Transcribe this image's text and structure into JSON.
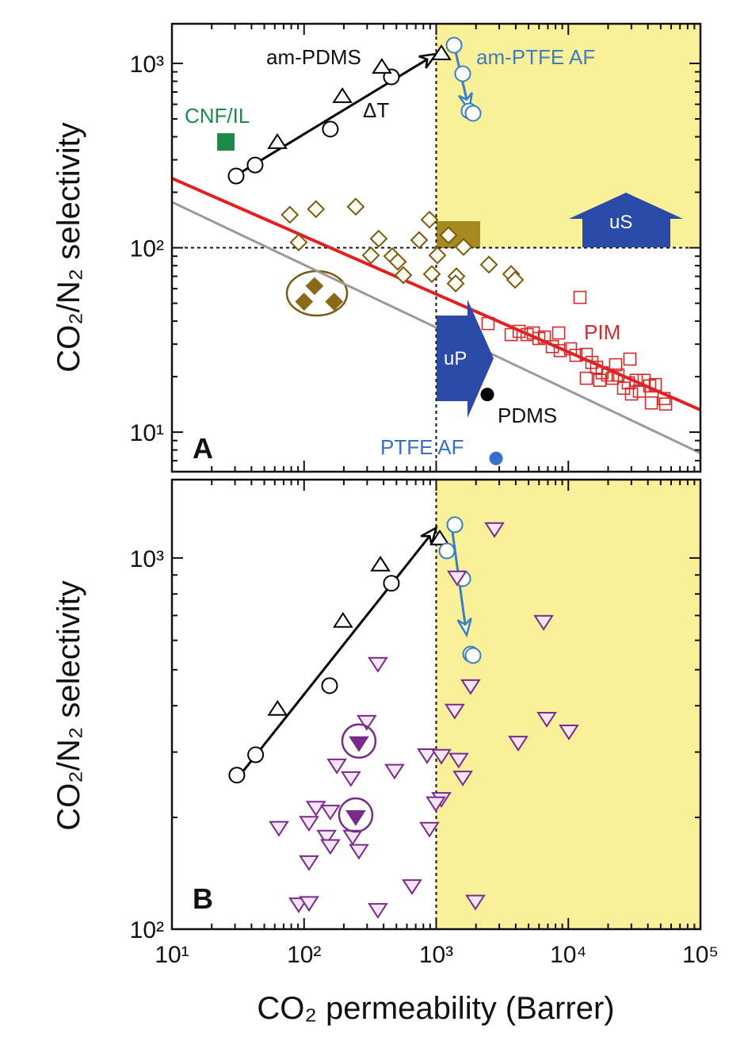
{
  "chart_data": [
    {
      "type": "scatter",
      "panel_label": "A",
      "xscale": "log",
      "yscale": "log",
      "xlim": [
        10,
        100000
      ],
      "ylim": [
        6.1,
        1640
      ],
      "xlabel": "CO₂ permeability (Barrer)",
      "ylabel": "CO₂/N₂ selectivity",
      "y_tick_labels": [
        "10³",
        "10²",
        "10¹"
      ],
      "y_tick_values": [
        1000,
        100,
        10
      ],
      "highlight_region": {
        "x_min": 1000,
        "y_min": 100,
        "color": "#fbf09a"
      },
      "reference_lines": {
        "x": 1000,
        "y": 100
      },
      "upper_bounds": [
        {
          "name": "red bound",
          "color": "#e32020",
          "points": [
            [
              10,
              238
            ],
            [
              100000,
              13.2
            ]
          ]
        },
        {
          "name": "gray bound",
          "color": "#9a9a9a",
          "points": [
            [
              10,
              177
            ],
            [
              100000,
              7.7
            ]
          ]
        }
      ],
      "series": [
        {
          "name": "am-PDMS circles",
          "marker": "circle",
          "color": "#000000",
          "x": [
            30.6,
            42.6,
            158,
            458
          ],
          "y": [
            245,
            281,
            440,
            845
          ]
        },
        {
          "name": "am-PDMS triangles",
          "marker": "triangle-up",
          "color": "#000000",
          "x": [
            62.8,
            195,
            388,
            1094
          ],
          "y": [
            372,
            660,
            952,
            1127
          ]
        },
        {
          "name": "am-PTFE AF",
          "marker": "circle",
          "color": "#3a7fc0",
          "x": [
            1365,
            1588,
            1774,
            1900
          ],
          "y": [
            1256,
            879,
            552,
            536
          ]
        },
        {
          "name": "CNF/IL",
          "marker": "square-filled",
          "color": "#1e8a4a",
          "x": [
            25.6
          ],
          "y": [
            375
          ]
        },
        {
          "name": "open diamonds",
          "marker": "diamond",
          "color": "#7a5a10",
          "x": [
            78,
            123,
            246,
            889,
            91,
            367,
            743,
            1239,
            1610,
            320,
            465,
            512,
            1021,
            564,
            927,
            1422,
            1403,
            2506,
            3690,
            3955
          ],
          "y": [
            151,
            162,
            167,
            142,
            107,
            112,
            110,
            117,
            101,
            91,
            90,
            84,
            91,
            71,
            72,
            70,
            64,
            81,
            72,
            67
          ]
        },
        {
          "name": "filled diamonds",
          "marker": "diamond-filled",
          "color": "#8a6a18",
          "x": [
            120,
            100,
            169
          ],
          "y": [
            62,
            51,
            51
          ]
        },
        {
          "name": "PIM",
          "marker": "square",
          "color": "#d42a2a",
          "x": [
            12250,
            2470,
            3690,
            4240,
            4870,
            5430,
            5980,
            6590,
            8450,
            7570,
            8690,
            10380,
            11430,
            13680,
            15070,
            16370,
            18030,
            19860,
            21580,
            23770,
            29240,
            22800,
            28440,
            32660,
            37500,
            41300,
            45500,
            30060,
            34500,
            42500,
            53000,
            54500,
            13680,
            17300,
            26200
          ],
          "y": [
            53.8,
            38.8,
            33.8,
            35.2,
            33.8,
            34.5,
            32.2,
            32.8,
            34.5,
            29.1,
            27.7,
            28.3,
            26.1,
            26.4,
            23.9,
            22.5,
            21.0,
            20.4,
            19.6,
            20.4,
            24.9,
            23.2,
            18.5,
            19.1,
            19.1,
            17.8,
            18.1,
            16.1,
            16.7,
            14.4,
            15.2,
            14.2,
            19.6,
            19.1,
            17.3
          ]
        },
        {
          "name": "PDMS",
          "marker": "circle-filled",
          "color": "#000000",
          "x": [
            2437
          ],
          "y": [
            16
          ]
        },
        {
          "name": "PTFE AF",
          "marker": "circle-filled",
          "color": "#3a6fc8",
          "x": [
            2838
          ],
          "y": [
            7.2
          ]
        }
      ],
      "trend_arrows": [
        {
          "color": "#000000",
          "from": [
            30,
            245
          ],
          "to": [
            1000,
            1126
          ]
        },
        {
          "color": "#3a7fc0",
          "from": [
            1365,
            1256
          ],
          "to": [
            1774,
            560
          ]
        }
      ],
      "annotations": {
        "am_pdms": "am-PDMS",
        "am_ptfe": "am-PTFE AF",
        "cnf_il": "CNF/IL",
        "delta_t": "ΔT",
        "pim": "PIM",
        "pdms": "PDMS",
        "ptfe": "PTFE AF",
        "us": "uS",
        "up": "uP"
      },
      "colors": {
        "arrow_blue": "#2a4aa8",
        "olive": "#a68a20"
      }
    },
    {
      "type": "scatter",
      "panel_label": "B",
      "xscale": "log",
      "yscale": "log",
      "xlim": [
        10,
        100000
      ],
      "ylim": [
        100,
        1626
      ],
      "xlabel": "CO₂ permeability (Barrer)",
      "ylabel": "CO₂/N₂ selectivity",
      "x_tick_labels": [
        "10¹",
        "10²",
        "10³",
        "10⁴",
        "10⁵"
      ],
      "x_tick_values": [
        10,
        100,
        1000,
        10000,
        100000
      ],
      "y_tick_labels": [
        "10³",
        "10²"
      ],
      "y_tick_values": [
        1000,
        100
      ],
      "highlight_region": {
        "x_min": 1000,
        "color": "#fbf09a"
      },
      "reference_lines": {
        "x": 1000
      },
      "series": [
        {
          "name": "am-PDMS circles",
          "marker": "circle",
          "color": "#000000",
          "x": [
            31,
            43,
            156,
            458
          ],
          "y": [
            260,
            295,
            453,
            855
          ]
        },
        {
          "name": "am-PDMS triangles",
          "marker": "triangle-up",
          "color": "#000000",
          "x": [
            63,
            197,
            378,
            1064
          ],
          "y": [
            391,
            675,
            957,
            1126
          ]
        },
        {
          "name": "am-PTFE AF",
          "marker": "circle",
          "color": "#3a7fc0",
          "x": [
            1384,
            1205,
            1589,
            1824,
            1900
          ],
          "y": [
            1229,
            1045,
            880,
            551,
            546
          ]
        },
        {
          "name": "open down-triangles",
          "marker": "triangle-down",
          "color": "#7a2a8a",
          "x": [
            2760,
            1440,
            6500,
            362,
            1820,
            1380,
            6870,
            10100,
            4180,
            298,
            853,
            1094,
            1480,
            1590,
            177,
            226,
            484,
            1094,
            993,
            123,
            158,
            109,
            64.5,
            148,
            158,
            233,
            260,
            889,
            109,
            656,
            91,
            109,
            362,
            1980
          ],
          "y": [
            1200,
            889,
            675,
            520,
            453,
            389,
            370,
            342,
            319,
            363,
            295,
            294,
            287,
            257,
            277,
            256,
            268,
            225,
            219,
            213,
            208,
            194,
            188,
            178,
            168,
            178,
            163,
            187,
            152,
            131,
            117,
            118,
            113,
            119
          ]
        },
        {
          "name": "filled down-triangles (circled)",
          "marker": "triangle-down-filled",
          "color": "#7a2a8a",
          "x": [
            260,
            246
          ],
          "y": [
            318,
            201
          ]
        }
      ],
      "trend_arrows": [
        {
          "color": "#000000",
          "from": [
            30,
            250
          ],
          "to": [
            1000,
            1206
          ]
        },
        {
          "color": "#3a7fc0",
          "from": [
            1300,
            1240
          ],
          "to": [
            1700,
            620
          ]
        }
      ]
    }
  ]
}
